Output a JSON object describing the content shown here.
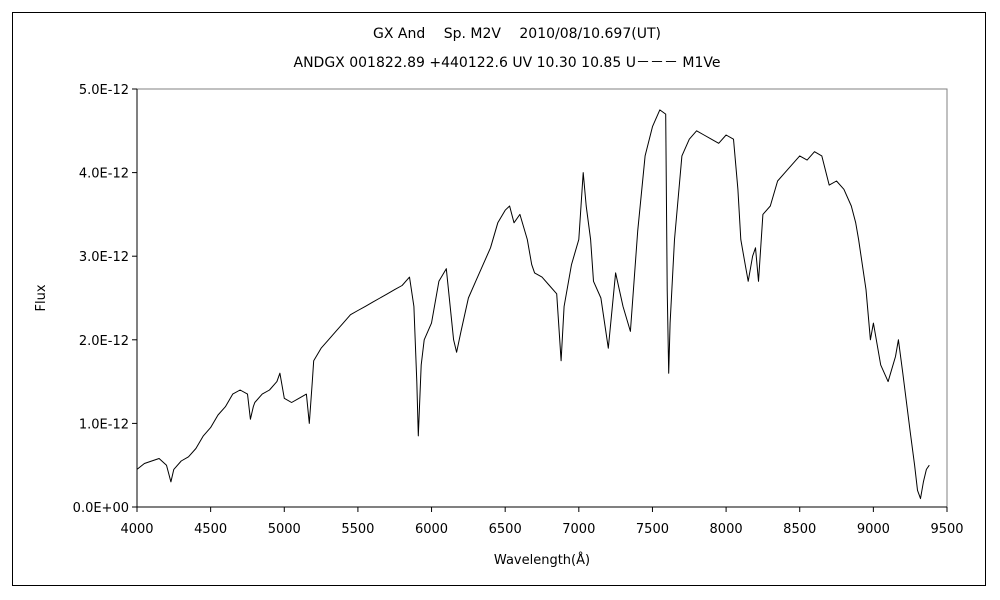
{
  "chart_data": {
    "type": "line",
    "title": "GX And　 Sp. M2V　 2010/08/10.697(UT)",
    "subtitle": "ANDGX 001822.89 +440122.6 UV 10.30 10.85 U－－－ M1Ve",
    "xlabel": "Wavelength(Å)",
    "ylabel": "Flux",
    "xlim": [
      4000,
      9500
    ],
    "ylim": [
      0,
      5e-12
    ],
    "x_ticks": [
      "4000",
      "4500",
      "5000",
      "5500",
      "6000",
      "6500",
      "7000",
      "7500",
      "8000",
      "8500",
      "9000",
      "9500"
    ],
    "y_ticks": [
      "0.0E+00",
      "1.0E-12",
      "2.0E-12",
      "3.0E-12",
      "4.0E-12",
      "5.0E-12"
    ],
    "grid": false,
    "legend": "none",
    "series": [
      {
        "color": "#000000",
        "x": [
          4000,
          4050,
          4100,
          4150,
          4200,
          4230,
          4250,
          4300,
          4350,
          4400,
          4450,
          4500,
          4550,
          4600,
          4650,
          4700,
          4750,
          4770,
          4790,
          4800,
          4850,
          4900,
          4950,
          4970,
          5000,
          5050,
          5100,
          5150,
          5170,
          5190,
          5200,
          5250,
          5300,
          5350,
          5400,
          5450,
          5500,
          5550,
          5600,
          5650,
          5700,
          5750,
          5800,
          5850,
          5880,
          5900,
          5910,
          5930,
          5950,
          6000,
          6050,
          6100,
          6150,
          6170,
          6200,
          6250,
          6300,
          6350,
          6400,
          6450,
          6500,
          6530,
          6560,
          6600,
          6650,
          6680,
          6700,
          6750,
          6800,
          6850,
          6880,
          6900,
          6950,
          7000,
          7030,
          7050,
          7080,
          7100,
          7150,
          7200,
          7250,
          7300,
          7350,
          7400,
          7450,
          7500,
          7550,
          7590,
          7600,
          7610,
          7620,
          7650,
          7700,
          7750,
          7800,
          7850,
          7900,
          7950,
          8000,
          8050,
          8080,
          8100,
          8130,
          8150,
          8180,
          8200,
          8220,
          8250,
          8300,
          8350,
          8400,
          8450,
          8500,
          8550,
          8600,
          8650,
          8700,
          8750,
          8800,
          8850,
          8880,
          8900,
          8950,
          8980,
          9000,
          9050,
          9100,
          9150,
          9170,
          9200,
          9250,
          9280,
          9300,
          9320,
          9340,
          9360,
          9380
        ],
        "y": [
          4.5e-13,
          5.2e-13,
          5.5e-13,
          5.8e-13,
          5e-13,
          3e-13,
          4.5e-13,
          5.5e-13,
          6e-13,
          7e-13,
          8.5e-13,
          9.5e-13,
          1.1e-12,
          1.2e-12,
          1.35e-12,
          1.4e-12,
          1.35e-12,
          1.05e-12,
          1.2e-12,
          1.25e-12,
          1.35e-12,
          1.4e-12,
          1.5e-12,
          1.6e-12,
          1.3e-12,
          1.25e-12,
          1.3e-12,
          1.35e-12,
          1e-12,
          1.5e-12,
          1.75e-12,
          1.9e-12,
          2e-12,
          2.1e-12,
          2.2e-12,
          2.3e-12,
          2.35e-12,
          2.4e-12,
          2.45e-12,
          2.5e-12,
          2.55e-12,
          2.6e-12,
          2.65e-12,
          2.75e-12,
          2.4e-12,
          1.5e-12,
          8.5e-13,
          1.7e-12,
          2e-12,
          2.2e-12,
          2.7e-12,
          2.85e-12,
          2e-12,
          1.85e-12,
          2.1e-12,
          2.5e-12,
          2.7e-12,
          2.9e-12,
          3.1e-12,
          3.4e-12,
          3.55e-12,
          3.6e-12,
          3.4e-12,
          3.5e-12,
          3.2e-12,
          2.9e-12,
          2.8e-12,
          2.75e-12,
          2.65e-12,
          2.55e-12,
          1.75e-12,
          2.4e-12,
          2.9e-12,
          3.2e-12,
          4e-12,
          3.6e-12,
          3.2e-12,
          2.7e-12,
          2.5e-12,
          1.9e-12,
          2.8e-12,
          2.4e-12,
          2.1e-12,
          3.3e-12,
          4.2e-12,
          4.55e-12,
          4.75e-12,
          4.7e-12,
          2.6e-12,
          1.6e-12,
          2.2e-12,
          3.2e-12,
          4.2e-12,
          4.4e-12,
          4.5e-12,
          4.45e-12,
          4.4e-12,
          4.35e-12,
          4.45e-12,
          4.4e-12,
          3.8e-12,
          3.2e-12,
          2.9e-12,
          2.7e-12,
          3e-12,
          3.1e-12,
          2.7e-12,
          3.5e-12,
          3.6e-12,
          3.9e-12,
          4e-12,
          4.1e-12,
          4.2e-12,
          4.15e-12,
          4.25e-12,
          4.2e-12,
          3.85e-12,
          3.9e-12,
          3.8e-12,
          3.6e-12,
          3.4e-12,
          3.2e-12,
          2.6e-12,
          2e-12,
          2.2e-12,
          1.7e-12,
          1.5e-12,
          1.8e-12,
          2e-12,
          1.6e-12,
          9e-13,
          5e-13,
          2e-13,
          1e-13,
          3e-13,
          4.5e-13,
          5e-13
        ]
      }
    ]
  }
}
